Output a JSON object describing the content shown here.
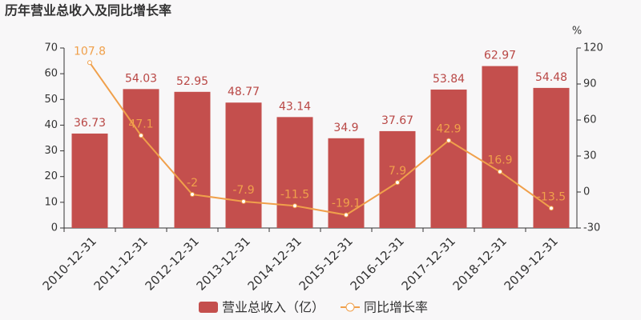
{
  "chart_data": {
    "type": "bar",
    "title": "历年营业总收入及同比增长率",
    "categories": [
      "2010-12-31",
      "2011-12-31",
      "2012-12-31",
      "2013-12-31",
      "2014-12-31",
      "2015-12-31",
      "2016-12-31",
      "2017-12-31",
      "2018-12-31",
      "2019-12-31"
    ],
    "series": [
      {
        "name": "营业总收入（亿）",
        "type": "bar",
        "color": "#c44f4d",
        "values": [
          36.73,
          54.03,
          52.95,
          48.77,
          43.14,
          34.9,
          37.67,
          53.84,
          62.97,
          54.48
        ]
      },
      {
        "name": "同比增长率",
        "type": "line",
        "axis": "y2",
        "color": "#f0a04b",
        "values": [
          107.8,
          47.1,
          -2,
          -7.9,
          -11.5,
          -19.1,
          7.9,
          42.9,
          16.9,
          -13.5
        ]
      }
    ],
    "ylim": [
      0,
      70
    ],
    "yticks": [
      0,
      10,
      20,
      30,
      40,
      50,
      60,
      70
    ],
    "y2lim": [
      -30,
      120
    ],
    "y2ticks": [
      -30,
      0,
      30,
      60,
      90,
      120
    ],
    "y2_label": "%"
  }
}
